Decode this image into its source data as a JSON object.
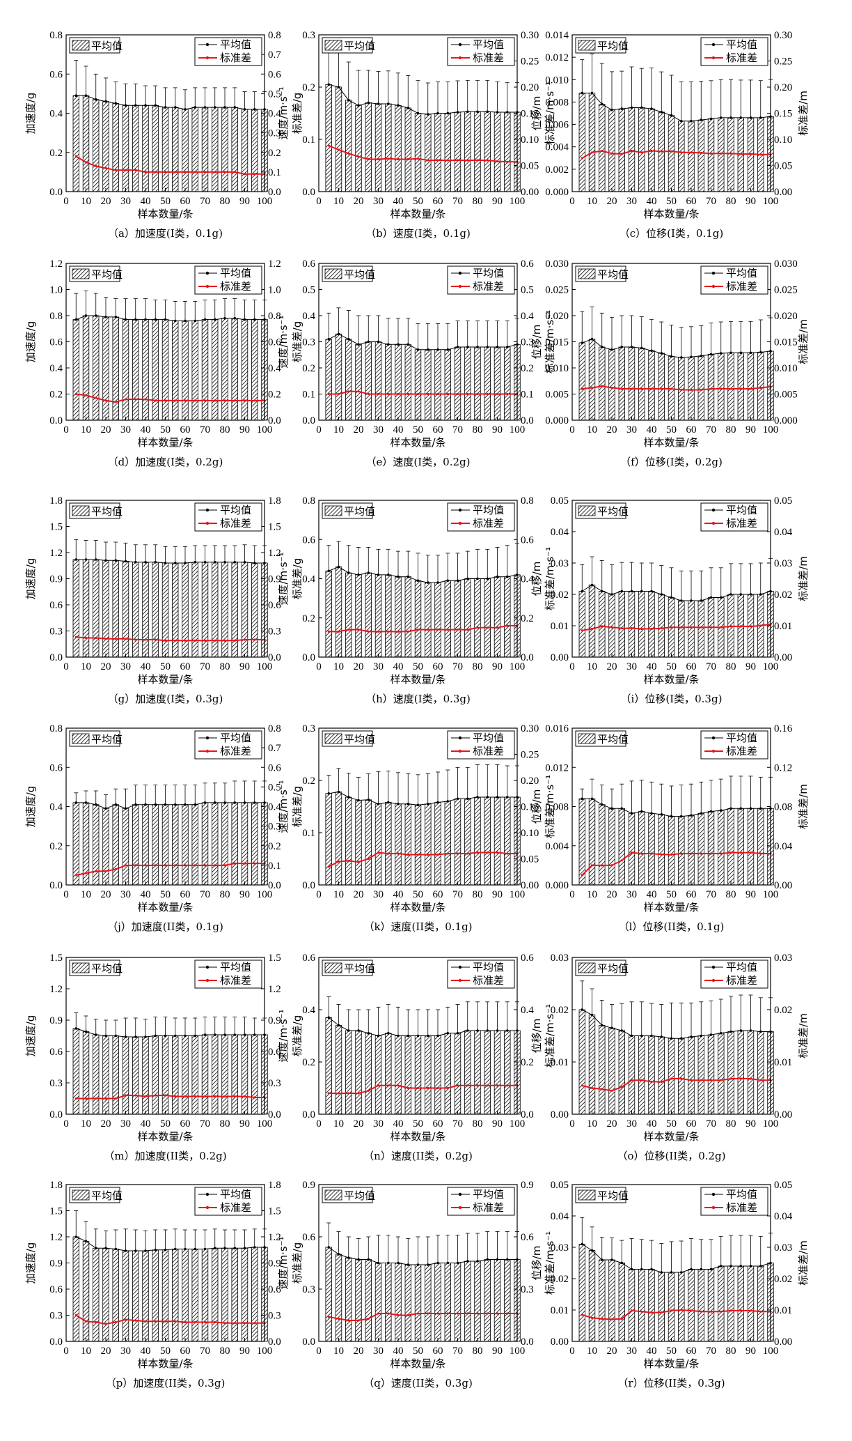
{
  "legend": {
    "mean_bar": "平均值",
    "mean_line": "平均值",
    "std_line": "标准差"
  },
  "x_axis": {
    "label": "样本数量/条",
    "ticks": [
      0,
      10,
      20,
      30,
      40,
      50,
      60,
      70,
      80,
      90,
      100
    ]
  },
  "x_samples": [
    5,
    10,
    15,
    20,
    25,
    30,
    35,
    40,
    45,
    50,
    55,
    60,
    65,
    70,
    75,
    80,
    85,
    90,
    95,
    100
  ],
  "colors": {
    "std": "#e8141b",
    "mean": "#000000"
  },
  "chart_data": [
    {
      "id": "a",
      "type": "bar",
      "caption": "（a）加速度(I类，0.1g)",
      "ylabel": "加速度/g",
      "y2label": "标准差/g",
      "ylim": [
        0,
        0.8
      ],
      "yticks": [
        0,
        0.2,
        0.4,
        0.6,
        0.8
      ],
      "y2ticks": [
        0,
        0.1,
        0.2,
        0.3,
        0.4,
        0.5,
        0.6,
        0.7,
        0.8
      ],
      "dec": 1,
      "dec2": 1,
      "mean": [
        0.49,
        0.49,
        0.47,
        0.46,
        0.45,
        0.44,
        0.44,
        0.44,
        0.44,
        0.43,
        0.43,
        0.42,
        0.43,
        0.43,
        0.43,
        0.43,
        0.43,
        0.42,
        0.42,
        0.42
      ],
      "std": [
        0.18,
        0.15,
        0.13,
        0.12,
        0.11,
        0.11,
        0.11,
        0.1,
        0.1,
        0.1,
        0.1,
        0.1,
        0.1,
        0.1,
        0.1,
        0.1,
        0.1,
        0.09,
        0.09,
        0.09
      ]
    },
    {
      "id": "b",
      "type": "bar",
      "caption": "（b）速度(I类，0.1g)",
      "ylabel": "速度/m·s⁻¹",
      "y2label": "标准差/m·s⁻¹",
      "ylim": [
        0,
        0.3
      ],
      "yticks": [
        0,
        0.1,
        0.2,
        0.3
      ],
      "y2ticks": [
        0,
        0.05,
        0.1,
        0.15,
        0.2,
        0.25,
        0.3
      ],
      "dec": 1,
      "dec2": 2,
      "mean": [
        0.205,
        0.2,
        0.175,
        0.165,
        0.17,
        0.168,
        0.168,
        0.165,
        0.16,
        0.15,
        0.148,
        0.15,
        0.15,
        0.152,
        0.153,
        0.153,
        0.153,
        0.152,
        0.152,
        0.152
      ],
      "std": [
        0.088,
        0.08,
        0.073,
        0.067,
        0.062,
        0.062,
        0.063,
        0.062,
        0.062,
        0.063,
        0.06,
        0.06,
        0.06,
        0.06,
        0.06,
        0.06,
        0.06,
        0.058,
        0.057,
        0.057
      ]
    },
    {
      "id": "c",
      "type": "bar",
      "caption": "（c）位移(I类，0.1g)",
      "ylabel": "位移/m",
      "y2label": "标准差/m",
      "ylim": [
        0,
        0.014
      ],
      "yticks": [
        0,
        0.002,
        0.004,
        0.006,
        0.008,
        0.01,
        0.012,
        0.014
      ],
      "y2ticks": [
        0,
        0.05,
        0.1,
        0.15,
        0.2,
        0.25,
        0.3
      ],
      "dec": 3,
      "dec2": 2,
      "mean": [
        0.0088,
        0.0088,
        0.0078,
        0.0073,
        0.0074,
        0.0075,
        0.0075,
        0.0074,
        0.0071,
        0.0068,
        0.0063,
        0.0063,
        0.0064,
        0.0065,
        0.0066,
        0.0066,
        0.0066,
        0.0066,
        0.0066,
        0.0067
      ],
      "std": [
        0.064,
        0.075,
        0.078,
        0.073,
        0.072,
        0.078,
        0.075,
        0.078,
        0.077,
        0.077,
        0.075,
        0.075,
        0.074,
        0.073,
        0.073,
        0.073,
        0.072,
        0.072,
        0.071,
        0.071
      ]
    },
    {
      "id": "d",
      "type": "bar",
      "caption": "（d）加速度(I类，0.2g)",
      "ylabel": "加速度/g",
      "y2label": "标准差/g",
      "ylim": [
        0,
        1.2
      ],
      "yticks": [
        0,
        0.2,
        0.4,
        0.6,
        0.8,
        1.0,
        1.2
      ],
      "y2ticks": [
        0,
        0.2,
        0.4,
        0.6,
        0.8,
        1.0,
        1.2
      ],
      "dec": 1,
      "dec2": 1,
      "mean": [
        0.77,
        0.8,
        0.8,
        0.79,
        0.79,
        0.77,
        0.77,
        0.77,
        0.77,
        0.77,
        0.76,
        0.76,
        0.76,
        0.77,
        0.77,
        0.78,
        0.78,
        0.77,
        0.77,
        0.77
      ],
      "std": [
        0.2,
        0.19,
        0.17,
        0.15,
        0.14,
        0.16,
        0.16,
        0.16,
        0.15,
        0.15,
        0.15,
        0.15,
        0.15,
        0.15,
        0.15,
        0.15,
        0.15,
        0.15,
        0.15,
        0.15
      ]
    },
    {
      "id": "e",
      "type": "bar",
      "caption": "（e）速度(I类，0.2g)",
      "ylabel": "速度/m·s⁻¹",
      "y2label": "标准差/m·s⁻¹",
      "ylim": [
        0,
        0.6
      ],
      "yticks": [
        0,
        0.1,
        0.2,
        0.3,
        0.4,
        0.5,
        0.6
      ],
      "y2ticks": [
        0,
        0.1,
        0.2,
        0.3,
        0.4,
        0.5,
        0.6
      ],
      "dec": 1,
      "dec2": 1,
      "mean": [
        0.31,
        0.33,
        0.31,
        0.29,
        0.3,
        0.3,
        0.29,
        0.29,
        0.29,
        0.27,
        0.27,
        0.27,
        0.27,
        0.28,
        0.28,
        0.28,
        0.28,
        0.28,
        0.28,
        0.29
      ],
      "std": [
        0.1,
        0.1,
        0.11,
        0.11,
        0.1,
        0.1,
        0.1,
        0.1,
        0.1,
        0.1,
        0.1,
        0.1,
        0.1,
        0.1,
        0.1,
        0.1,
        0.1,
        0.1,
        0.1,
        0.1
      ]
    },
    {
      "id": "f",
      "type": "bar",
      "caption": "（f）位移(I类，0.2g)",
      "ylabel": "位移/m",
      "y2label": "标准差/m",
      "ylim": [
        0,
        0.03
      ],
      "yticks": [
        0,
        0.005,
        0.01,
        0.015,
        0.02,
        0.025,
        0.03
      ],
      "y2ticks": [
        0,
        0.005,
        0.01,
        0.015,
        0.02,
        0.025,
        0.03
      ],
      "dec": 3,
      "dec2": 3,
      "mean": [
        0.0148,
        0.0155,
        0.014,
        0.0135,
        0.014,
        0.014,
        0.0138,
        0.0133,
        0.0128,
        0.0122,
        0.012,
        0.0121,
        0.0123,
        0.0126,
        0.0128,
        0.0129,
        0.0129,
        0.0129,
        0.013,
        0.0132
      ],
      "std": [
        0.006,
        0.0062,
        0.0065,
        0.0062,
        0.006,
        0.006,
        0.006,
        0.006,
        0.006,
        0.006,
        0.0058,
        0.0058,
        0.0058,
        0.006,
        0.006,
        0.006,
        0.006,
        0.006,
        0.0062,
        0.0064
      ]
    },
    {
      "id": "g",
      "type": "bar",
      "caption": "（g）加速度(I类，0.3g)",
      "ylabel": "加速度/g",
      "y2label": "标准差/g",
      "ylim": [
        0,
        1.8
      ],
      "yticks": [
        0,
        0.3,
        0.6,
        0.9,
        1.2,
        1.5,
        1.8
      ],
      "y2ticks": [
        0,
        0.3,
        0.6,
        0.9,
        1.2,
        1.5,
        1.8
      ],
      "dec": 1,
      "dec2": 1,
      "mean": [
        1.12,
        1.12,
        1.12,
        1.11,
        1.11,
        1.1,
        1.09,
        1.09,
        1.09,
        1.08,
        1.08,
        1.08,
        1.09,
        1.09,
        1.09,
        1.09,
        1.09,
        1.09,
        1.08,
        1.08
      ],
      "std": [
        0.23,
        0.22,
        0.22,
        0.21,
        0.21,
        0.21,
        0.2,
        0.2,
        0.2,
        0.19,
        0.19,
        0.19,
        0.19,
        0.19,
        0.19,
        0.19,
        0.19,
        0.2,
        0.2,
        0.2
      ]
    },
    {
      "id": "h",
      "type": "bar",
      "caption": "（h）速度(I类，0.3g)",
      "ylabel": "速度/m·s⁻¹",
      "y2label": "标准差/m·s⁻¹",
      "ylim": [
        0,
        0.8
      ],
      "yticks": [
        0,
        0.2,
        0.4,
        0.6,
        0.8
      ],
      "y2ticks": [
        0,
        0.2,
        0.4,
        0.6,
        0.8
      ],
      "dec": 1,
      "dec2": 1,
      "mean": [
        0.44,
        0.46,
        0.43,
        0.42,
        0.43,
        0.42,
        0.42,
        0.41,
        0.41,
        0.39,
        0.38,
        0.38,
        0.39,
        0.39,
        0.4,
        0.4,
        0.4,
        0.41,
        0.41,
        0.42
      ],
      "std": [
        0.13,
        0.13,
        0.14,
        0.14,
        0.13,
        0.13,
        0.13,
        0.13,
        0.13,
        0.14,
        0.14,
        0.14,
        0.14,
        0.14,
        0.14,
        0.15,
        0.15,
        0.15,
        0.16,
        0.16
      ]
    },
    {
      "id": "i",
      "type": "bar",
      "caption": "（i）位移(I类，0.3g)",
      "ylabel": "位移/m",
      "y2label": "标准差/m",
      "ylim": [
        0,
        0.05
      ],
      "yticks": [
        0,
        0.01,
        0.02,
        0.03,
        0.04,
        0.05
      ],
      "y2ticks": [
        0,
        0.01,
        0.02,
        0.03,
        0.04,
        0.05
      ],
      "dec": 2,
      "dec2": 2,
      "mean": [
        0.021,
        0.023,
        0.021,
        0.02,
        0.021,
        0.021,
        0.021,
        0.021,
        0.02,
        0.019,
        0.018,
        0.018,
        0.018,
        0.019,
        0.019,
        0.02,
        0.02,
        0.02,
        0.02,
        0.021
      ],
      "std": [
        0.0085,
        0.009,
        0.0098,
        0.0095,
        0.0092,
        0.0092,
        0.009,
        0.009,
        0.0092,
        0.0095,
        0.0095,
        0.0095,
        0.0095,
        0.0095,
        0.0095,
        0.0098,
        0.0098,
        0.0098,
        0.01,
        0.0105
      ]
    },
    {
      "id": "j",
      "type": "bar",
      "caption": "（j）加速度(II类，0.1g)",
      "ylabel": "加速度/g",
      "y2label": "标准差/g",
      "ylim": [
        0,
        0.8
      ],
      "yticks": [
        0,
        0.2,
        0.4,
        0.6,
        0.8
      ],
      "y2ticks": [
        0,
        0.1,
        0.2,
        0.3,
        0.4,
        0.5,
        0.6,
        0.7,
        0.8
      ],
      "dec": 1,
      "dec2": 1,
      "mean": [
        0.42,
        0.42,
        0.41,
        0.39,
        0.41,
        0.39,
        0.41,
        0.41,
        0.41,
        0.41,
        0.41,
        0.41,
        0.41,
        0.42,
        0.42,
        0.42,
        0.42,
        0.42,
        0.42,
        0.42
      ],
      "std": [
        0.05,
        0.06,
        0.07,
        0.07,
        0.08,
        0.1,
        0.1,
        0.1,
        0.1,
        0.1,
        0.1,
        0.1,
        0.1,
        0.1,
        0.1,
        0.1,
        0.11,
        0.11,
        0.11,
        0.11
      ]
    },
    {
      "id": "k",
      "type": "bar",
      "caption": "（k）速度(II类，0.1g)",
      "ylabel": "速度/m·s⁻¹",
      "y2label": "标准差/m·s⁻¹",
      "ylim": [
        0,
        0.3
      ],
      "yticks": [
        0,
        0.1,
        0.2,
        0.3
      ],
      "y2ticks": [
        0,
        0.05,
        0.1,
        0.15,
        0.2,
        0.25,
        0.3
      ],
      "dec": 1,
      "dec2": 2,
      "mean": [
        0.175,
        0.178,
        0.168,
        0.162,
        0.163,
        0.155,
        0.158,
        0.155,
        0.155,
        0.153,
        0.155,
        0.158,
        0.16,
        0.165,
        0.165,
        0.168,
        0.168,
        0.168,
        0.168,
        0.168
      ],
      "std": [
        0.035,
        0.045,
        0.046,
        0.044,
        0.05,
        0.062,
        0.06,
        0.06,
        0.058,
        0.058,
        0.058,
        0.058,
        0.06,
        0.06,
        0.06,
        0.062,
        0.062,
        0.062,
        0.06,
        0.06
      ]
    },
    {
      "id": "l",
      "type": "bar",
      "caption": "（l）位移(II类，0.1g)",
      "ylabel": "位移/m",
      "y2label": "标准差/m",
      "ylim": [
        0,
        0.016
      ],
      "yticks": [
        0,
        0.004,
        0.008,
        0.012,
        0.016
      ],
      "y2ticks": [
        0,
        0.04,
        0.08,
        0.12,
        0.16
      ],
      "dec": 3,
      "dec2": 2,
      "mean": [
        0.0088,
        0.0088,
        0.0082,
        0.0078,
        0.0078,
        0.0073,
        0.0075,
        0.0073,
        0.0072,
        0.007,
        0.007,
        0.0071,
        0.0073,
        0.0075,
        0.0076,
        0.0078,
        0.0078,
        0.0078,
        0.0078,
        0.0078
      ],
      "std": [
        0.01,
        0.02,
        0.02,
        0.02,
        0.025,
        0.033,
        0.032,
        0.032,
        0.031,
        0.031,
        0.032,
        0.032,
        0.032,
        0.032,
        0.032,
        0.033,
        0.033,
        0.033,
        0.032,
        0.032
      ]
    },
    {
      "id": "m",
      "type": "bar",
      "caption": "（m）加速度(II类，0.2g)",
      "ylabel": "加速度/g",
      "y2label": "标准差/g",
      "ylim": [
        0,
        1.5
      ],
      "yticks": [
        0,
        0.3,
        0.6,
        0.9,
        1.2,
        1.5
      ],
      "y2ticks": [
        0,
        0.3,
        0.6,
        0.9,
        1.2,
        1.5
      ],
      "dec": 1,
      "dec2": 1,
      "mean": [
        0.82,
        0.79,
        0.76,
        0.75,
        0.75,
        0.74,
        0.74,
        0.74,
        0.75,
        0.75,
        0.75,
        0.75,
        0.75,
        0.76,
        0.76,
        0.76,
        0.76,
        0.76,
        0.76,
        0.76
      ],
      "std": [
        0.15,
        0.15,
        0.15,
        0.15,
        0.15,
        0.18,
        0.18,
        0.17,
        0.18,
        0.18,
        0.17,
        0.17,
        0.17,
        0.17,
        0.17,
        0.17,
        0.17,
        0.17,
        0.16,
        0.16
      ]
    },
    {
      "id": "n",
      "type": "bar",
      "caption": "（n）速度(II类，0.2g)",
      "ylabel": "速度/m·s⁻¹",
      "y2label": "标准差/m·s⁻¹",
      "ylim": [
        0,
        0.6
      ],
      "yticks": [
        0,
        0.2,
        0.4,
        0.6
      ],
      "y2ticks": [
        0,
        0.2,
        0.4,
        0.6
      ],
      "dec": 1,
      "dec2": 1,
      "mean": [
        0.37,
        0.34,
        0.32,
        0.32,
        0.31,
        0.3,
        0.31,
        0.3,
        0.3,
        0.3,
        0.3,
        0.3,
        0.31,
        0.31,
        0.32,
        0.32,
        0.32,
        0.32,
        0.32,
        0.32
      ],
      "std": [
        0.08,
        0.08,
        0.08,
        0.08,
        0.09,
        0.11,
        0.11,
        0.11,
        0.1,
        0.1,
        0.1,
        0.1,
        0.1,
        0.11,
        0.11,
        0.11,
        0.11,
        0.11,
        0.11,
        0.11
      ]
    },
    {
      "id": "o",
      "type": "bar",
      "caption": "（o）位移(II类，0.2g)",
      "ylabel": "位移/m",
      "y2label": "标准差/m",
      "ylim": [
        0,
        0.03
      ],
      "yticks": [
        0,
        0.01,
        0.02,
        0.03
      ],
      "y2ticks": [
        0,
        0.01,
        0.02,
        0.03
      ],
      "dec": 2,
      "dec2": 2,
      "mean": [
        0.02,
        0.019,
        0.017,
        0.0165,
        0.016,
        0.015,
        0.015,
        0.015,
        0.0148,
        0.0145,
        0.0145,
        0.0148,
        0.015,
        0.0152,
        0.0155,
        0.0158,
        0.016,
        0.016,
        0.0158,
        0.0158
      ],
      "std": [
        0.0055,
        0.005,
        0.0048,
        0.0045,
        0.0052,
        0.0065,
        0.0065,
        0.0062,
        0.0062,
        0.0068,
        0.0068,
        0.0065,
        0.0065,
        0.0065,
        0.0065,
        0.0068,
        0.0068,
        0.0068,
        0.0065,
        0.0065
      ]
    },
    {
      "id": "p",
      "type": "bar",
      "caption": "（p）加速度(II类，0.3g)",
      "ylabel": "加速度/g",
      "y2label": "标准差/g",
      "ylim": [
        0,
        1.8
      ],
      "yticks": [
        0,
        0.3,
        0.6,
        0.9,
        1.2,
        1.5,
        1.8
      ],
      "y2ticks": [
        0,
        0.3,
        0.6,
        0.9,
        1.2,
        1.5,
        1.8
      ],
      "dec": 1,
      "dec2": 1,
      "mean": [
        1.2,
        1.15,
        1.07,
        1.07,
        1.06,
        1.04,
        1.04,
        1.04,
        1.05,
        1.05,
        1.06,
        1.06,
        1.06,
        1.06,
        1.07,
        1.07,
        1.07,
        1.07,
        1.08,
        1.08
      ],
      "std": [
        0.3,
        0.23,
        0.22,
        0.2,
        0.22,
        0.25,
        0.24,
        0.23,
        0.23,
        0.23,
        0.23,
        0.22,
        0.22,
        0.22,
        0.22,
        0.21,
        0.21,
        0.21,
        0.21,
        0.21
      ]
    },
    {
      "id": "q",
      "type": "bar",
      "caption": "（q）速度(II类，0.3g)",
      "ylabel": "速度/m·s⁻¹",
      "y2label": "标准差/m·s⁻¹",
      "ylim": [
        0,
        0.9
      ],
      "yticks": [
        0,
        0.3,
        0.6,
        0.9
      ],
      "y2ticks": [
        0,
        0.3,
        0.6,
        0.9
      ],
      "dec": 1,
      "dec2": 1,
      "mean": [
        0.54,
        0.5,
        0.48,
        0.47,
        0.47,
        0.45,
        0.45,
        0.45,
        0.44,
        0.44,
        0.44,
        0.45,
        0.45,
        0.45,
        0.46,
        0.46,
        0.47,
        0.47,
        0.47,
        0.47
      ],
      "std": [
        0.14,
        0.13,
        0.12,
        0.12,
        0.13,
        0.16,
        0.16,
        0.15,
        0.15,
        0.16,
        0.16,
        0.16,
        0.16,
        0.16,
        0.16,
        0.16,
        0.16,
        0.16,
        0.16,
        0.16
      ]
    },
    {
      "id": "r",
      "type": "bar",
      "caption": "（r）位移(II类，0.3g)",
      "ylabel": "位移/m",
      "y2label": "标准差/m",
      "ylim": [
        0,
        0.05
      ],
      "yticks": [
        0,
        0.01,
        0.02,
        0.03,
        0.04,
        0.05
      ],
      "y2ticks": [
        0,
        0.01,
        0.02,
        0.03,
        0.04,
        0.05
      ],
      "dec": 2,
      "dec2": 2,
      "mean": [
        0.031,
        0.029,
        0.026,
        0.026,
        0.025,
        0.023,
        0.023,
        0.023,
        0.022,
        0.022,
        0.022,
        0.023,
        0.023,
        0.023,
        0.024,
        0.024,
        0.024,
        0.024,
        0.024,
        0.025
      ],
      "std": [
        0.0085,
        0.0075,
        0.0072,
        0.007,
        0.0072,
        0.0098,
        0.0095,
        0.0092,
        0.0092,
        0.0098,
        0.01,
        0.0098,
        0.0095,
        0.0095,
        0.0095,
        0.0098,
        0.0098,
        0.0098,
        0.0095,
        0.0095
      ]
    }
  ]
}
